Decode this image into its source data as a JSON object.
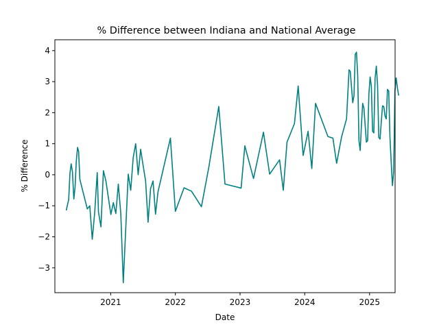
{
  "chart_data": {
    "type": "line",
    "title": "% Difference between Indiana and National Average",
    "xlabel": "Date",
    "ylabel": "% Difference",
    "x_ticks": [
      "2021",
      "2022",
      "2023",
      "2024",
      "2025"
    ],
    "x_tick_dates": [
      "2021-01-01",
      "2022-01-01",
      "2023-01-01",
      "2024-01-01",
      "2025-01-01"
    ],
    "xlim": [
      "2020-02-21",
      "2025-05-25"
    ],
    "y_ticks": [
      -3,
      -2,
      -1,
      0,
      1,
      2,
      3,
      4
    ],
    "ylim": [
      -3.8,
      4.35
    ],
    "grid": false,
    "line_color": "#008080",
    "series": [
      {
        "name": "",
        "points": [
          [
            "2020-04-25",
            -1.15
          ],
          [
            "2020-05-09",
            -0.8
          ],
          [
            "2020-05-16",
            0.05
          ],
          [
            "2020-05-23",
            0.35
          ],
          [
            "2020-05-30",
            0.1
          ],
          [
            "2020-06-07",
            -0.78
          ],
          [
            "2020-06-14",
            -0.4
          ],
          [
            "2020-06-21",
            0.45
          ],
          [
            "2020-06-28",
            0.88
          ],
          [
            "2020-07-04",
            0.75
          ],
          [
            "2020-07-11",
            -0.15
          ],
          [
            "2020-08-22",
            -1.1
          ],
          [
            "2020-09-05",
            -1.0
          ],
          [
            "2020-09-19",
            -2.08
          ],
          [
            "2020-10-03",
            -1.2
          ],
          [
            "2020-10-17",
            0.07
          ],
          [
            "2020-10-24",
            -1.2
          ],
          [
            "2020-11-07",
            -1.68
          ],
          [
            "2020-11-21",
            0.13
          ],
          [
            "2020-12-05",
            -0.2
          ],
          [
            "2021-01-02",
            -1.28
          ],
          [
            "2021-01-16",
            -0.9
          ],
          [
            "2021-01-30",
            -1.25
          ],
          [
            "2021-02-13",
            -0.3
          ],
          [
            "2021-02-27",
            -1.25
          ],
          [
            "2021-03-13",
            -3.48
          ],
          [
            "2021-04-10",
            0.02
          ],
          [
            "2021-04-24",
            -0.5
          ],
          [
            "2021-05-08",
            0.55
          ],
          [
            "2021-05-22",
            1.0
          ],
          [
            "2021-06-05",
            0.0
          ],
          [
            "2021-06-19",
            0.82
          ],
          [
            "2021-07-03",
            0.3
          ],
          [
            "2021-07-17",
            -0.2
          ],
          [
            "2021-07-31",
            -1.53
          ],
          [
            "2021-08-14",
            -0.45
          ],
          [
            "2021-08-28",
            -0.2
          ],
          [
            "2021-09-11",
            -1.27
          ],
          [
            "2021-09-25",
            -0.55
          ],
          [
            "2021-12-04",
            1.18
          ],
          [
            "2022-01-01",
            -1.18
          ],
          [
            "2022-02-19",
            -0.42
          ],
          [
            "2022-04-02",
            -0.53
          ],
          [
            "2022-05-28",
            -1.03
          ],
          [
            "2022-07-09",
            0.25
          ],
          [
            "2022-09-03",
            2.2
          ],
          [
            "2022-10-08",
            -0.3
          ],
          [
            "2023-01-07",
            -0.43
          ],
          [
            "2023-01-28",
            0.93
          ],
          [
            "2023-03-18",
            -0.12
          ],
          [
            "2023-05-13",
            1.37
          ],
          [
            "2023-06-17",
            0.02
          ],
          [
            "2023-08-12",
            0.48
          ],
          [
            "2023-09-02",
            -0.5
          ],
          [
            "2023-09-23",
            1.05
          ],
          [
            "2023-11-04",
            1.65
          ],
          [
            "2023-11-25",
            2.86
          ],
          [
            "2023-12-23",
            0.62
          ],
          [
            "2024-01-20",
            1.4
          ],
          [
            "2024-02-10",
            0.2
          ],
          [
            "2024-03-02",
            2.3
          ],
          [
            "2024-05-11",
            1.23
          ],
          [
            "2024-06-08",
            1.18
          ],
          [
            "2024-06-29",
            0.37
          ],
          [
            "2024-07-27",
            1.22
          ],
          [
            "2024-08-24",
            1.8
          ],
          [
            "2024-09-07",
            3.38
          ],
          [
            "2024-09-14",
            3.33
          ],
          [
            "2024-09-28",
            2.32
          ],
          [
            "2024-10-05",
            2.55
          ],
          [
            "2024-10-12",
            3.88
          ],
          [
            "2024-10-19",
            3.95
          ],
          [
            "2024-10-26",
            3.2
          ],
          [
            "2024-11-02",
            1.1
          ],
          [
            "2024-11-09",
            0.78
          ],
          [
            "2024-11-16",
            1.6
          ],
          [
            "2024-11-23",
            2.3
          ],
          [
            "2024-11-30",
            2.15
          ],
          [
            "2024-12-07",
            1.6
          ],
          [
            "2024-12-14",
            1.05
          ],
          [
            "2024-12-21",
            1.1
          ],
          [
            "2024-12-28",
            2.6
          ],
          [
            "2025-01-04",
            3.15
          ],
          [
            "2025-01-11",
            2.85
          ],
          [
            "2025-01-18",
            1.4
          ],
          [
            "2025-01-25",
            1.35
          ],
          [
            "2025-02-01",
            3.1
          ],
          [
            "2025-02-08",
            3.5
          ],
          [
            "2025-02-15",
            2.9
          ],
          [
            "2025-02-22",
            1.2
          ],
          [
            "2025-03-01",
            1.15
          ],
          [
            "2025-03-08",
            1.7
          ],
          [
            "2025-03-15",
            2.22
          ],
          [
            "2025-03-22",
            2.2
          ],
          [
            "2025-03-29",
            1.9
          ],
          [
            "2025-04-05",
            1.8
          ],
          [
            "2025-04-12",
            2.75
          ],
          [
            "2025-04-19",
            2.7
          ],
          [
            "2025-04-26",
            1.2
          ],
          [
            "2025-05-03",
            0.4
          ],
          [
            "2025-05-10",
            -0.35
          ],
          [
            "2025-05-17",
            0.1
          ],
          [
            "2025-05-24",
            2.7
          ],
          [
            "2025-05-31",
            3.12
          ],
          [
            "2025-06-07",
            2.8
          ],
          [
            "2025-06-14",
            2.55
          ]
        ]
      }
    ]
  }
}
